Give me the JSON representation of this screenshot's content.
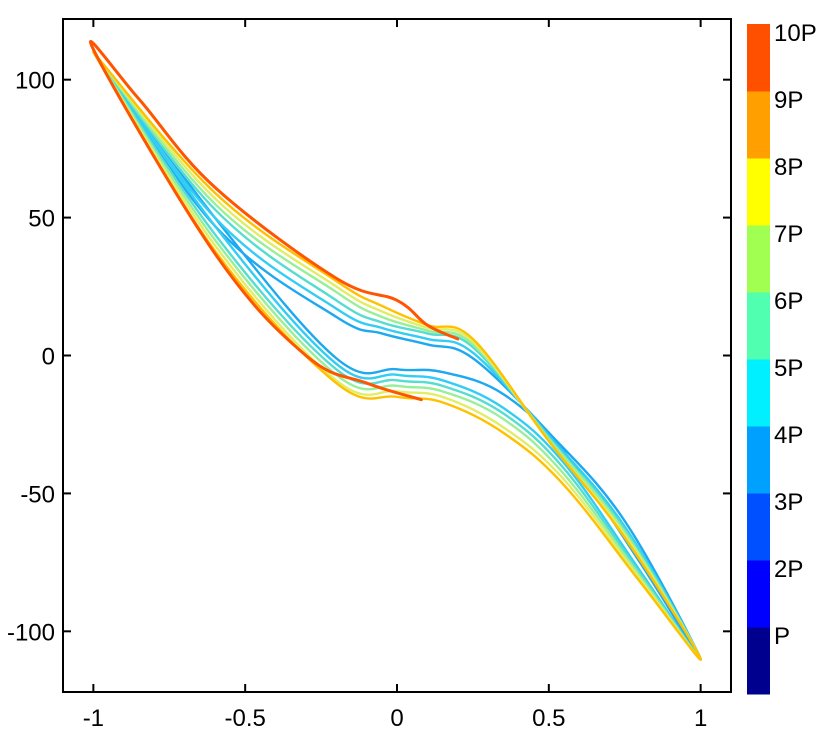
{
  "chart_data": {
    "type": "line",
    "title": "",
    "xlabel": "",
    "ylabel": "",
    "xlim": [
      -1.1,
      1.1
    ],
    "ylim": [
      -122,
      122
    ],
    "x_ticks": [
      -1,
      -0.5,
      0,
      0.5,
      1
    ],
    "x_tick_labels": [
      "-1",
      "-0.5",
      "0",
      "0.5",
      "1"
    ],
    "y_ticks": [
      100,
      50,
      0,
      -50,
      -100
    ],
    "y_tick_labels": [
      "100",
      "50",
      "0",
      "-50",
      "-100"
    ],
    "grid": false,
    "legend": "none",
    "colorbar": {
      "placement": "right",
      "labels": [
        "P",
        "2P",
        "3P",
        "4P",
        "5P",
        "6P",
        "7P",
        "8P",
        "9P",
        "10P"
      ],
      "colors": [
        "#00008f",
        "#0000ff",
        "#0050ff",
        "#00a0ff",
        "#00f0ff",
        "#50ffb0",
        "#a0ff50",
        "#ffff00",
        "#ffa000",
        "#ff5000"
      ]
    },
    "series": [
      {
        "color": "#1ea8f0",
        "values": [
          [
            -1.0,
            110
          ],
          [
            -0.6,
            47
          ],
          [
            -0.2,
            14
          ],
          [
            -0.05,
            8
          ],
          [
            0.1,
            4
          ],
          [
            0.25,
            -1
          ],
          [
            0.5,
            -28
          ],
          [
            0.75,
            -60
          ],
          [
            1.0,
            -110
          ],
          [
            0.8,
            -75
          ],
          [
            0.55,
            -35
          ],
          [
            0.35,
            -14
          ],
          [
            0.15,
            -6
          ],
          [
            0.0,
            -5
          ],
          [
            -0.2,
            -1
          ],
          [
            -0.6,
            50
          ],
          [
            -1.0,
            110
          ]
        ]
      },
      {
        "color": "#33ccf5",
        "values": [
          [
            -1.0,
            110
          ],
          [
            -0.6,
            50
          ],
          [
            -0.2,
            17
          ],
          [
            -0.05,
            10
          ],
          [
            0.1,
            6
          ],
          [
            0.25,
            1
          ],
          [
            0.5,
            -29
          ],
          [
            0.75,
            -62
          ],
          [
            1.0,
            -110
          ],
          [
            0.8,
            -78
          ],
          [
            0.55,
            -39
          ],
          [
            0.35,
            -19
          ],
          [
            0.15,
            -9
          ],
          [
            0.0,
            -7
          ],
          [
            -0.2,
            -3
          ],
          [
            -0.6,
            47
          ],
          [
            -1.0,
            110
          ]
        ]
      },
      {
        "color": "#55ddd0",
        "values": [
          [
            -1.0,
            110
          ],
          [
            -0.6,
            53
          ],
          [
            -0.2,
            20
          ],
          [
            -0.05,
            12
          ],
          [
            0.1,
            8
          ],
          [
            0.25,
            3
          ],
          [
            0.5,
            -30
          ],
          [
            0.75,
            -63
          ],
          [
            1.0,
            -110
          ],
          [
            0.8,
            -79
          ],
          [
            0.55,
            -41
          ],
          [
            0.35,
            -21
          ],
          [
            0.15,
            -11
          ],
          [
            0.0,
            -9
          ],
          [
            -0.2,
            -5
          ],
          [
            -0.6,
            44
          ],
          [
            -1.0,
            110
          ]
        ]
      },
      {
        "color": "#99ee99",
        "values": [
          [
            -1.0,
            110
          ],
          [
            -0.6,
            55
          ],
          [
            -0.2,
            23
          ],
          [
            -0.05,
            14
          ],
          [
            0.1,
            9
          ],
          [
            0.25,
            4
          ],
          [
            0.5,
            -30
          ],
          [
            0.75,
            -64
          ],
          [
            1.0,
            -110
          ],
          [
            0.8,
            -80
          ],
          [
            0.55,
            -43
          ],
          [
            0.35,
            -23
          ],
          [
            0.15,
            -13
          ],
          [
            0.0,
            -11
          ],
          [
            -0.2,
            -7
          ],
          [
            -0.6,
            42
          ],
          [
            -1.0,
            110
          ]
        ]
      },
      {
        "color": "#e0ee66",
        "values": [
          [
            -1.0,
            110
          ],
          [
            -0.6,
            57
          ],
          [
            -0.2,
            25
          ],
          [
            -0.05,
            16
          ],
          [
            0.1,
            10
          ],
          [
            0.25,
            5
          ],
          [
            0.5,
            -31
          ],
          [
            0.75,
            -65
          ],
          [
            1.0,
            -110
          ],
          [
            0.8,
            -81
          ],
          [
            0.55,
            -45
          ],
          [
            0.35,
            -26
          ],
          [
            0.15,
            -15
          ],
          [
            0.0,
            -13
          ],
          [
            -0.2,
            -9
          ],
          [
            -0.6,
            40
          ],
          [
            -1.0,
            110
          ]
        ]
      },
      {
        "color": "#ffc000",
        "values": [
          [
            -1.0,
            110
          ],
          [
            -0.6,
            59
          ],
          [
            -0.2,
            27
          ],
          [
            -0.05,
            18
          ],
          [
            0.1,
            11
          ],
          [
            0.25,
            6
          ],
          [
            0.5,
            -31
          ],
          [
            0.75,
            -66
          ],
          [
            1.0,
            -110
          ],
          [
            0.8,
            -82
          ],
          [
            0.55,
            -47
          ],
          [
            0.35,
            -28
          ],
          [
            0.15,
            -17
          ],
          [
            0.0,
            -15
          ],
          [
            -0.2,
            -10
          ],
          [
            -0.6,
            38
          ],
          [
            -1.0,
            110
          ]
        ]
      },
      {
        "color": "#ff5500",
        "values": [
          [
            0.08,
            -16
          ],
          [
            -0.1,
            -10
          ],
          [
            -0.3,
            0
          ],
          [
            -0.6,
            37
          ],
          [
            -1.0,
            111
          ],
          [
            -0.85,
            93
          ],
          [
            -0.6,
            61
          ],
          [
            -0.2,
            28
          ],
          [
            0.0,
            20
          ],
          [
            0.1,
            11
          ],
          [
            0.2,
            6
          ]
        ]
      }
    ]
  }
}
